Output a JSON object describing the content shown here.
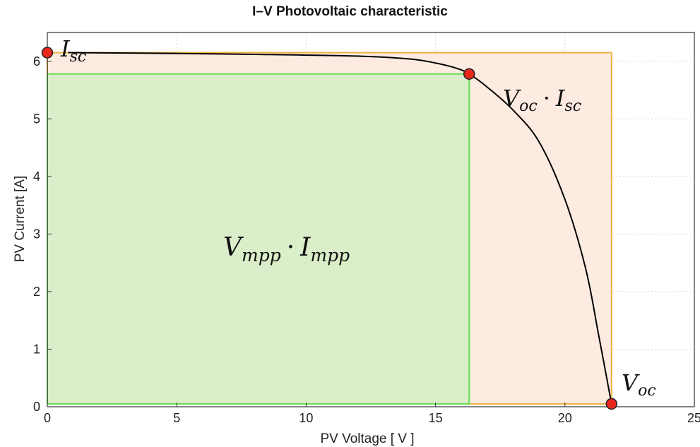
{
  "chart_data": {
    "type": "line",
    "title": "I–V Photovoltaic characteristic",
    "xlabel": "PV Voltage [ V ]",
    "ylabel": "PV Current [A]",
    "xlim": [
      0,
      25
    ],
    "ylim": [
      0,
      6.5
    ],
    "xticks": [
      0,
      5,
      10,
      15,
      20,
      25
    ],
    "yticks": [
      0,
      1,
      2,
      3,
      4,
      5,
      6
    ],
    "grid": true,
    "curve": {
      "x": [
        0.8,
        4,
        8,
        12,
        14,
        15,
        15.8,
        16.3,
        17,
        18,
        19,
        20,
        20.8,
        21.3,
        21.8
      ],
      "y": [
        6.15,
        6.14,
        6.12,
        6.09,
        6.04,
        5.97,
        5.88,
        5.78,
        5.55,
        5.15,
        4.6,
        3.6,
        2.4,
        1.25,
        0.05
      ]
    },
    "markers": [
      {
        "x": 0,
        "y": 6.15,
        "label": "I_sc"
      },
      {
        "x": 16.3,
        "y": 5.78,
        "label": "MPP"
      },
      {
        "x": 21.8,
        "y": 0.05,
        "label": "V_oc"
      }
    ],
    "regions": [
      {
        "name": "Voc·Isc",
        "x": [
          0,
          21.8
        ],
        "y": [
          0.05,
          6.15
        ],
        "fill": "#fde7dc",
        "stroke": "#f0b040"
      },
      {
        "name": "Vmpp·Impp",
        "x": [
          0,
          16.3
        ],
        "y": [
          0.05,
          5.78
        ],
        "fill": "#d3efc4",
        "stroke": "#66dd55"
      }
    ],
    "annotations": {
      "isc": {
        "base": "I",
        "sub": "sc"
      },
      "voc": {
        "base": "V",
        "sub": "oc"
      },
      "voc_isc": {
        "a": "V",
        "a_sub": "oc",
        "dot": "·",
        "b": "I",
        "b_sub": "sc"
      },
      "vmpp_impp": {
        "a": "V",
        "a_sub": "mpp",
        "dot": "·",
        "b": "I",
        "b_sub": "mpp"
      }
    }
  },
  "colors": {
    "curve": "#000000",
    "marker_fill": "#e8281c",
    "grid": "#d8d8d8",
    "axes": "#333333"
  }
}
